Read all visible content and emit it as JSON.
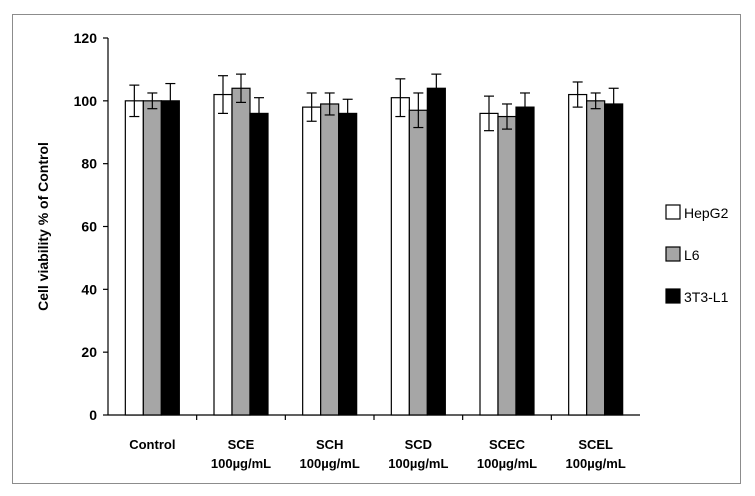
{
  "chart_data": {
    "type": "bar",
    "title": "",
    "ylabel": "Cell viability % of Control",
    "xlabel": "",
    "ylim": [
      0,
      120
    ],
    "yticks": [
      0,
      20,
      40,
      60,
      80,
      100,
      120
    ],
    "grid": false,
    "legend_position": "right",
    "categories": [
      {
        "line1": "Control",
        "line2": ""
      },
      {
        "line1": "SCE",
        "line2": "100µg/mL"
      },
      {
        "line1": "SCH",
        "line2": "100µg/mL"
      },
      {
        "line1": "SCD",
        "line2": "100µg/mL"
      },
      {
        "line1": "SCEC",
        "line2": "100µg/mL"
      },
      {
        "line1": "SCEL",
        "line2": "100µg/mL"
      }
    ],
    "series": [
      {
        "name": "HepG2",
        "color": "#ffffff",
        "values": [
          100,
          102,
          98,
          101,
          96,
          102
        ],
        "errors": [
          5,
          6,
          4.5,
          6,
          5.5,
          4
        ]
      },
      {
        "name": "L6",
        "color": "#a6a6a6",
        "values": [
          100,
          104,
          99,
          97,
          95,
          100
        ],
        "errors": [
          2.5,
          4.5,
          3.5,
          5.5,
          4,
          2.5
        ]
      },
      {
        "name": "3T3-L1",
        "color": "#000000",
        "values": [
          100,
          96,
          96,
          104,
          98,
          99
        ],
        "errors": [
          5.5,
          5,
          4.5,
          4.5,
          4.5,
          5
        ]
      }
    ]
  }
}
